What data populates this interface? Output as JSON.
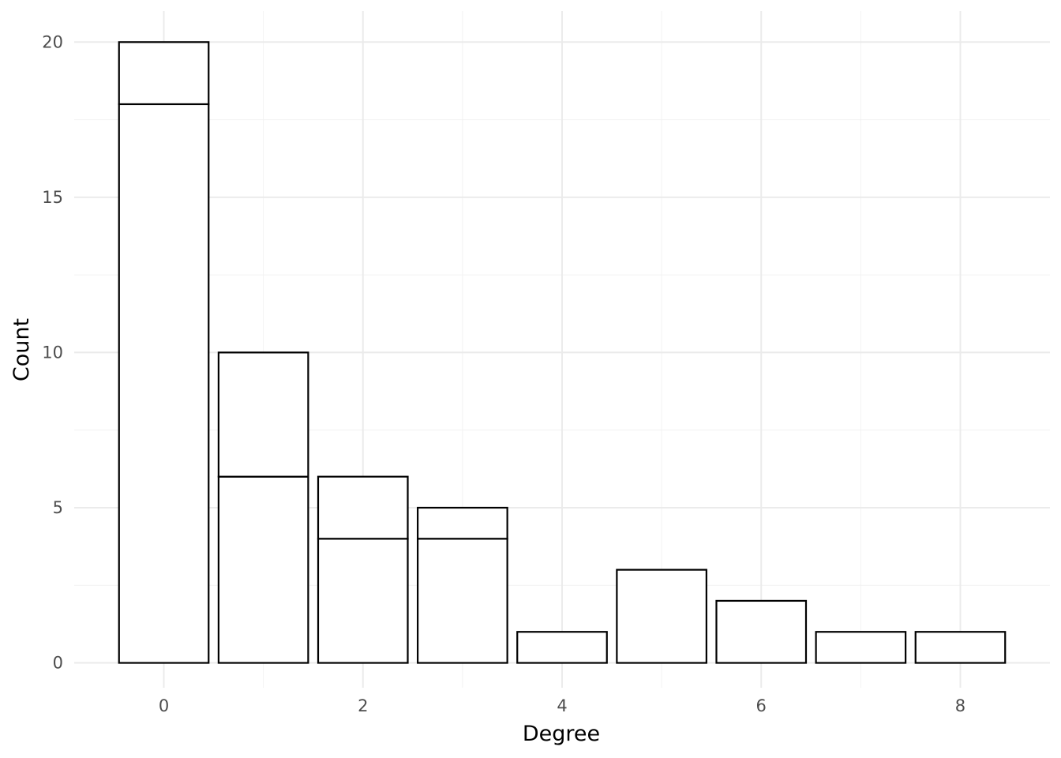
{
  "chart_data": {
    "type": "bar",
    "stacked": true,
    "xlabel": "Degree",
    "ylabel": "Count",
    "x_ticks": [
      0,
      2,
      4,
      6,
      8
    ],
    "y_ticks": [
      0,
      5,
      10,
      15,
      20
    ],
    "xlim": [
      -0.9,
      8.9
    ],
    "ylim": [
      -0.8,
      21
    ],
    "grid": true,
    "fill_color": "#ffffff",
    "outline_color": "#000000",
    "bars": [
      {
        "x": 0,
        "segments": [
          18,
          2
        ]
      },
      {
        "x": 1,
        "segments": [
          6,
          4
        ]
      },
      {
        "x": 2,
        "segments": [
          4,
          2
        ]
      },
      {
        "x": 3,
        "segments": [
          4,
          1
        ]
      },
      {
        "x": 4,
        "segments": [
          1
        ]
      },
      {
        "x": 5,
        "segments": [
          3
        ]
      },
      {
        "x": 6,
        "segments": [
          2
        ]
      },
      {
        "x": 7,
        "segments": [
          1
        ]
      },
      {
        "x": 8,
        "segments": [
          1
        ]
      }
    ]
  }
}
